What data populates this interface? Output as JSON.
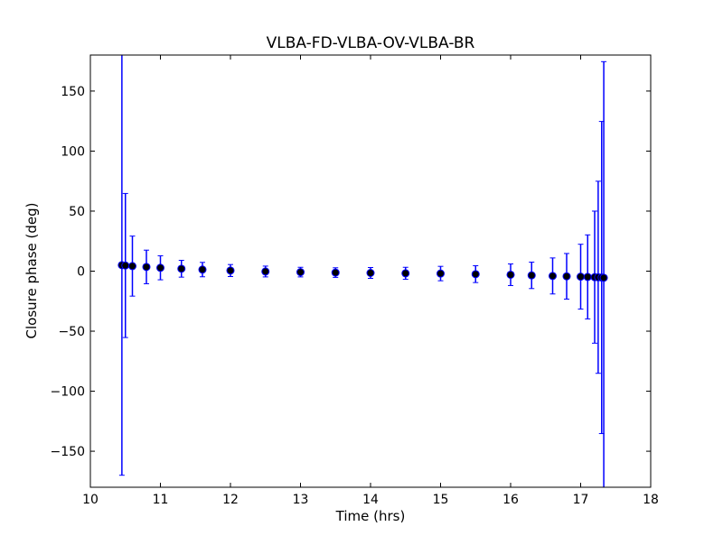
{
  "chart_data": {
    "type": "errorbar",
    "title": "VLBA-FD-VLBA-OV-VLBA-BR",
    "x_label": "Time (hrs)",
    "y_label": "Closure phase (deg)",
    "xlim": [
      10,
      18
    ],
    "ylim": [
      -180,
      180
    ],
    "xticks": [
      10,
      11,
      12,
      13,
      14,
      15,
      16,
      17,
      18
    ],
    "yticks": [
      {
        "value": -150,
        "label": "−150"
      },
      {
        "value": -100,
        "label": "−100"
      },
      {
        "value": -50,
        "label": "−50"
      },
      0,
      50,
      100,
      150
    ],
    "series": [
      {
        "color": "#0000ff",
        "marker_color": "#000000",
        "x": [
          10.45,
          10.5,
          10.6,
          10.8,
          11.0,
          11.3,
          11.6,
          12.0,
          12.5,
          13.0,
          13.5,
          14.0,
          14.5,
          15.0,
          15.5,
          16.0,
          16.3,
          16.6,
          16.8,
          17.0,
          17.1,
          17.2,
          17.25,
          17.3,
          17.33
        ],
        "values": [
          5,
          4.7,
          4.2,
          3.5,
          2.8,
          2,
          1.3,
          0.5,
          -0.3,
          -0.8,
          -1.2,
          -1.5,
          -1.8,
          -2,
          -2.5,
          -3,
          -3.5,
          -4,
          -4.3,
          -4.6,
          -4.8,
          -5,
          -5.1,
          -5.3,
          -5.5
        ],
        "errors": [
          175,
          60,
          25,
          14,
          10,
          7,
          6,
          5,
          4.5,
          4,
          4,
          4.5,
          5,
          6,
          7,
          9,
          11,
          15,
          19,
          27,
          35,
          55,
          80,
          130,
          180
        ]
      }
    ]
  }
}
